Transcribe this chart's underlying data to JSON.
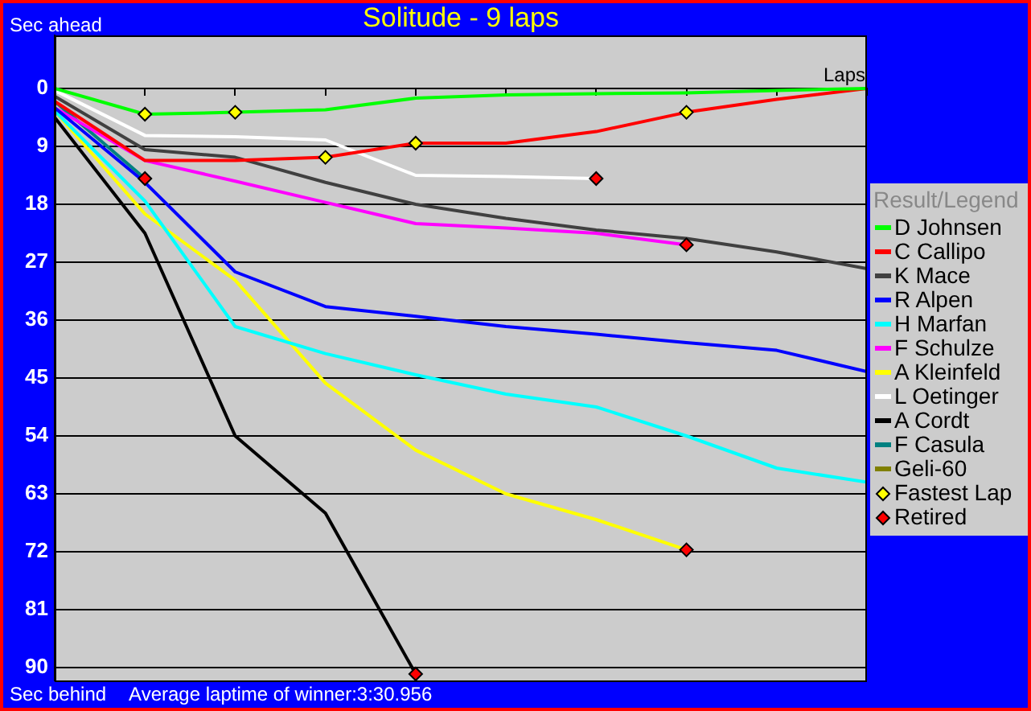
{
  "chart_data": {
    "type": "line",
    "title": "Solitude - 9 laps",
    "xlabel": "Laps",
    "legend_title": "Result/Legend",
    "annotations": [
      "Sec ahead",
      "Sec behind",
      "Average laptime of winner:3:30.956"
    ],
    "categories": [
      null,
      null,
      null,
      null,
      null,
      null,
      null,
      null,
      null,
      null
    ],
    "ylim": [
      92,
      -8.25
    ],
    "yticks": [
      0,
      9,
      18,
      27,
      36,
      45,
      54,
      63,
      72,
      81,
      90
    ],
    "grid": "y",
    "legend": "right",
    "tick_labels": "y",
    "series": [
      {
        "name": "D Johnsen",
        "color": "#00ff00",
        "values": [
          0,
          4,
          3.7,
          3.3,
          1.5,
          1,
          0.8,
          0.7,
          0.3,
          0
        ]
      },
      {
        "name": "C Callipo",
        "color": "#ff0000",
        "values": [
          2,
          11.2,
          11.2,
          10.7,
          8.5,
          8.5,
          6.7,
          3.7,
          1.7,
          0
        ]
      },
      {
        "name": "K Mace",
        "color": "#404040",
        "values": [
          1.2,
          9.5,
          10.7,
          14.6,
          18,
          20.2,
          22,
          23.3,
          25.4,
          28
        ]
      },
      {
        "name": "R Alpen",
        "color": "#0000ff",
        "values": [
          3,
          14.6,
          28.5,
          33.9,
          35.4,
          37,
          38.2,
          39.5,
          40.7,
          44
        ]
      },
      {
        "name": "H Marfan",
        "color": "#00ffff",
        "values": [
          3.5,
          17.5,
          37,
          41.2,
          44.5,
          47.5,
          49.5,
          54,
          59,
          61.2
        ]
      },
      {
        "name": "F Schulze",
        "color": "#ff00ff",
        "values": [
          3,
          11.2,
          14.4,
          17.7,
          21,
          21.7,
          22.5,
          24.3,
          null,
          null
        ]
      },
      {
        "name": "A Kleinfeld",
        "color": "#ffff00",
        "values": [
          3.5,
          19.5,
          29.8,
          45.8,
          56.2,
          63,
          67,
          71.7,
          null,
          null
        ]
      },
      {
        "name": "L Oetinger",
        "color": "#ffffff",
        "values": [
          0.3,
          7.3,
          7.5,
          8,
          13.5,
          13.7,
          14,
          null,
          null,
          null
        ]
      },
      {
        "name": "A Cordt",
        "color": "#000000",
        "values": [
          4.5,
          22.5,
          54,
          66,
          91,
          null,
          null,
          null,
          null,
          null
        ]
      },
      {
        "name": "F Casula",
        "color": "#008080",
        "values": [
          2,
          14,
          null,
          null,
          null,
          null,
          null,
          null,
          null,
          null
        ]
      },
      {
        "name": "Geli-60",
        "color": "#808000",
        "values": [
          null,
          null,
          null,
          null,
          null,
          null,
          null,
          null,
          null,
          null
        ]
      },
      {
        "name": "Fastest Lap",
        "type": "scatter",
        "marker": "diamond",
        "color": "#ffff00",
        "values": [
          null,
          4,
          3.7,
          10.7,
          8.5,
          null,
          null,
          3.7,
          null,
          null
        ]
      },
      {
        "name": "Retired",
        "type": "scatter",
        "marker": "diamond",
        "color": "#ff0000",
        "values": [
          null,
          14,
          null,
          null,
          91,
          null,
          14,
          24.3,
          null,
          null
        ]
      },
      {
        "type": "scatter",
        "marker": "diamond",
        "color": "#ff0000",
        "values": [
          null,
          null,
          null,
          null,
          null,
          null,
          null,
          71.7,
          null,
          null
        ]
      }
    ]
  }
}
